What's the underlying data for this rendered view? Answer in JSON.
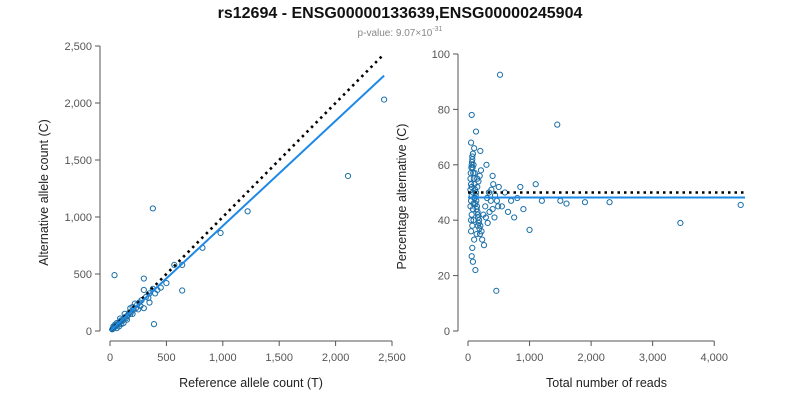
{
  "chart_data": [
    {
      "type": "scatter",
      "title": "rs12694 - ENSG00000133639,ENSG00000245904",
      "subtitle_prefix": "p-value: 9.07×10",
      "subtitle_exponent": "-31",
      "xlabel": "Reference allele count (T)",
      "ylabel": "Alternative allele count (C)",
      "xlim": [
        0,
        2500
      ],
      "ylim": [
        0,
        2500
      ],
      "xticks": [
        0,
        500,
        1000,
        1500,
        2000,
        2500
      ],
      "yticks": [
        0,
        500,
        1000,
        1500,
        2000,
        2500
      ],
      "xtick_labels": [
        "0",
        "500",
        "1,000",
        "1,500",
        "2,000",
        "2,500"
      ],
      "ytick_labels": [
        "0",
        "500",
        "1,000",
        "1,500",
        "2,000",
        "2,500"
      ],
      "point_color": "#1a6fa8",
      "fit_color": "#1e88e5",
      "reference_color": "#000000",
      "points": [
        [
          2430,
          2030
        ],
        [
          2110,
          1360
        ],
        [
          1220,
          1050
        ],
        [
          980,
          860
        ],
        [
          820,
          730
        ],
        [
          640,
          580
        ],
        [
          640,
          355
        ],
        [
          570,
          580
        ],
        [
          380,
          1075
        ],
        [
          390,
          60
        ],
        [
          380,
          370
        ],
        [
          350,
          330
        ],
        [
          320,
          300
        ],
        [
          300,
          360
        ],
        [
          300,
          460
        ],
        [
          280,
          270
        ],
        [
          260,
          250
        ],
        [
          240,
          230
        ],
        [
          230,
          200
        ],
        [
          210,
          190
        ],
        [
          200,
          210
        ],
        [
          190,
          170
        ],
        [
          180,
          150
        ],
        [
          170,
          160
        ],
        [
          160,
          140
        ],
        [
          150,
          130
        ],
        [
          140,
          110
        ],
        [
          130,
          120
        ],
        [
          120,
          100
        ],
        [
          110,
          90
        ],
        [
          100,
          95
        ],
        [
          90,
          80
        ],
        [
          80,
          70
        ],
        [
          70,
          60
        ],
        [
          60,
          50
        ],
        [
          50,
          45
        ],
        [
          40,
          35
        ],
        [
          35,
          30
        ],
        [
          30,
          25
        ],
        [
          25,
          20
        ],
        [
          20,
          15
        ],
        [
          40,
          490
        ],
        [
          60,
          25
        ],
        [
          80,
          40
        ],
        [
          100,
          60
        ],
        [
          120,
          70
        ],
        [
          150,
          100
        ],
        [
          200,
          150
        ],
        [
          250,
          190
        ],
        [
          300,
          200
        ],
        [
          350,
          250
        ],
        [
          400,
          330
        ],
        [
          450,
          380
        ],
        [
          500,
          420
        ],
        [
          420,
          360
        ],
        [
          340,
          290
        ],
        [
          270,
          220
        ],
        [
          220,
          240
        ],
        [
          180,
          200
        ],
        [
          130,
          150
        ],
        [
          90,
          110
        ],
        [
          60,
          70
        ],
        [
          45,
          55
        ],
        [
          30,
          40
        ]
      ],
      "fit_line": [
        [
          0,
          0
        ],
        [
          2430,
          2240
        ]
      ],
      "reference_line": [
        [
          0,
          0
        ],
        [
          2430,
          2430
        ]
      ]
    },
    {
      "type": "scatter",
      "xlabel": "Total number of reads",
      "ylabel": "Percentage alternative (C)",
      "xlim": [
        0,
        4500
      ],
      "ylim": [
        0,
        100
      ],
      "xticks": [
        0,
        1000,
        2000,
        3000,
        4000
      ],
      "yticks": [
        0,
        20,
        40,
        60,
        80,
        100
      ],
      "xtick_labels": [
        "0",
        "1,000",
        "2,000",
        "3,000",
        "4,000"
      ],
      "ytick_labels": [
        "0",
        "20",
        "40",
        "60",
        "80",
        "100"
      ],
      "point_color": "#1a6fa8",
      "fit_color": "#1e88e5",
      "reference_color": "#000000",
      "points": [
        [
          520,
          92.5
        ],
        [
          1450,
          74.5
        ],
        [
          60,
          78
        ],
        [
          130,
          72
        ],
        [
          200,
          65
        ],
        [
          50,
          68
        ],
        [
          70,
          63
        ],
        [
          90,
          60
        ],
        [
          110,
          57
        ],
        [
          150,
          55
        ],
        [
          300,
          60
        ],
        [
          400,
          56
        ],
        [
          500,
          52
        ],
        [
          600,
          50
        ],
        [
          700,
          47
        ],
        [
          800,
          48
        ],
        [
          900,
          44
        ],
        [
          1000,
          36.5
        ],
        [
          1100,
          53
        ],
        [
          1200,
          47
        ],
        [
          1500,
          47
        ],
        [
          1600,
          46
        ],
        [
          1900,
          46.5
        ],
        [
          2300,
          46.5
        ],
        [
          3450,
          39
        ],
        [
          4430,
          45.5
        ],
        [
          460,
          14.5
        ],
        [
          120,
          22
        ],
        [
          80,
          25
        ],
        [
          60,
          27
        ],
        [
          70,
          30
        ],
        [
          100,
          33
        ],
        [
          140,
          35
        ],
        [
          160,
          38
        ],
        [
          50,
          40
        ],
        [
          60,
          42
        ],
        [
          80,
          44
        ],
        [
          90,
          46
        ],
        [
          110,
          48
        ],
        [
          130,
          50
        ],
        [
          150,
          52
        ],
        [
          170,
          54
        ],
        [
          190,
          56
        ],
        [
          210,
          58
        ],
        [
          60,
          60
        ],
        [
          70,
          62
        ],
        [
          80,
          64
        ],
        [
          100,
          66
        ],
        [
          60,
          52
        ],
        [
          80,
          50
        ],
        [
          100,
          48
        ],
        [
          120,
          46
        ],
        [
          140,
          44
        ],
        [
          160,
          42
        ],
        [
          180,
          40
        ],
        [
          200,
          38
        ],
        [
          220,
          36
        ],
        [
          250,
          42
        ],
        [
          280,
          45
        ],
        [
          310,
          48
        ],
        [
          340,
          50
        ],
        [
          370,
          47
        ],
        [
          400,
          44
        ],
        [
          430,
          41
        ],
        [
          550,
          45
        ],
        [
          650,
          43
        ],
        [
          750,
          41
        ],
        [
          850,
          52
        ],
        [
          50,
          36
        ],
        [
          70,
          38
        ],
        [
          90,
          40
        ],
        [
          40,
          45
        ],
        [
          50,
          47
        ],
        [
          60,
          49
        ],
        [
          40,
          51
        ],
        [
          50,
          53
        ],
        [
          40,
          55
        ],
        [
          45,
          57
        ],
        [
          55,
          59
        ],
        [
          65,
          61
        ],
        [
          75,
          59
        ],
        [
          85,
          57
        ],
        [
          95,
          55
        ],
        [
          105,
          53
        ],
        [
          115,
          51
        ],
        [
          125,
          49
        ],
        [
          135,
          47
        ],
        [
          145,
          45
        ],
        [
          155,
          43
        ],
        [
          165,
          41
        ],
        [
          175,
          39
        ],
        [
          185,
          37
        ],
        [
          195,
          35
        ],
        [
          230,
          33
        ],
        [
          260,
          31
        ],
        [
          290,
          41
        ],
        [
          320,
          39
        ],
        [
          350,
          43
        ],
        [
          380,
          51
        ],
        [
          410,
          53
        ],
        [
          440,
          49
        ],
        [
          470,
          47
        ],
        [
          490,
          45
        ]
      ],
      "fit_y": 48.2,
      "reference_y": 50
    }
  ]
}
